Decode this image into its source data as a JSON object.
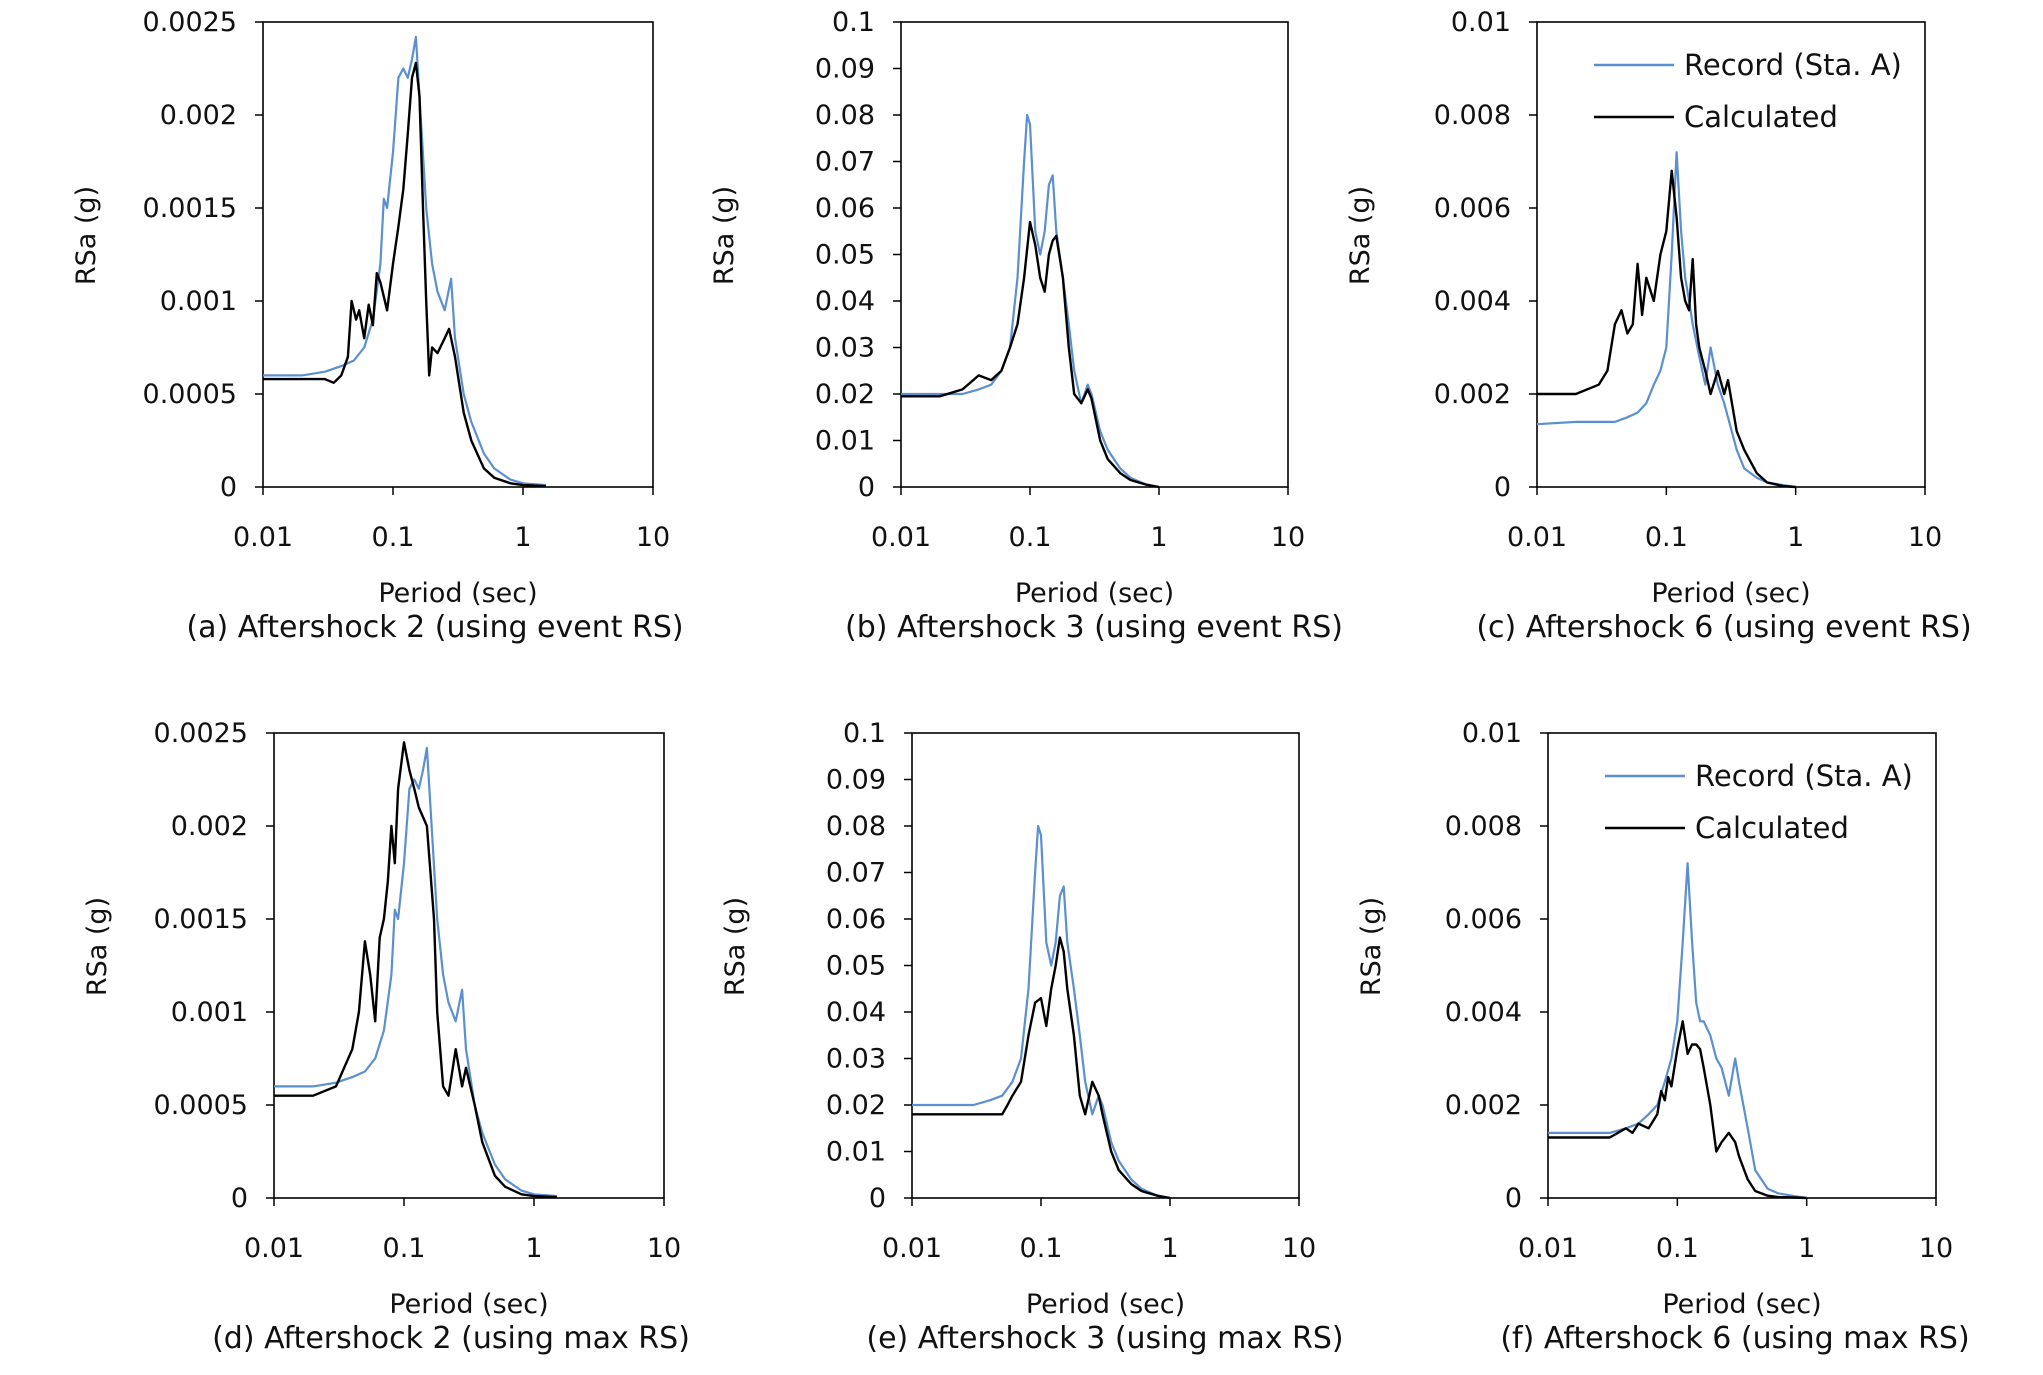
{
  "colors": {
    "record": "#5b8fd0",
    "calculated": "#000000",
    "axis": "#000000"
  },
  "chart_data": [
    {
      "type": "line",
      "caption": "(a) Aftershock 2 (using event RS)",
      "xlabel": "Period (sec)",
      "ylabel": "RSa (g)",
      "xscale": "log",
      "xlim": [
        0.01,
        10
      ],
      "ylim": [
        0,
        0.0025
      ],
      "xticks": [
        "0.01",
        "0.1",
        "1",
        "10"
      ],
      "yticks": [
        "0",
        "0.0005",
        "0.001",
        "0.0015",
        "0.002",
        "0.0025"
      ],
      "grid": false,
      "legend": null,
      "series": [
        {
          "key": "record",
          "x": [
            0.01,
            0.02,
            0.03,
            0.04,
            0.05,
            0.06,
            0.07,
            0.08,
            0.085,
            0.09,
            0.1,
            0.11,
            0.12,
            0.13,
            0.14,
            0.15,
            0.16,
            0.18,
            0.2,
            0.22,
            0.25,
            0.28,
            0.3,
            0.35,
            0.4,
            0.5,
            0.6,
            0.8,
            1.0,
            1.5
          ],
          "y": [
            0.0006,
            0.0006,
            0.00062,
            0.00065,
            0.00068,
            0.00075,
            0.0009,
            0.0012,
            0.00155,
            0.0015,
            0.0018,
            0.0022,
            0.00225,
            0.0022,
            0.0023,
            0.00242,
            0.0021,
            0.0015,
            0.0012,
            0.00105,
            0.00095,
            0.00112,
            0.0008,
            0.0005,
            0.00035,
            0.00018,
            0.0001,
            4e-05,
            2e-05,
            1e-05
          ]
        },
        {
          "key": "calculated",
          "x": [
            0.01,
            0.02,
            0.03,
            0.035,
            0.04,
            0.045,
            0.048,
            0.052,
            0.055,
            0.06,
            0.065,
            0.07,
            0.075,
            0.08,
            0.09,
            0.1,
            0.11,
            0.12,
            0.13,
            0.14,
            0.15,
            0.16,
            0.17,
            0.18,
            0.19,
            0.2,
            0.22,
            0.25,
            0.27,
            0.3,
            0.35,
            0.4,
            0.5,
            0.6,
            0.8,
            1.0,
            1.5
          ],
          "y": [
            0.00058,
            0.00058,
            0.00058,
            0.00056,
            0.0006,
            0.0007,
            0.001,
            0.0009,
            0.00095,
            0.0008,
            0.00098,
            0.00087,
            0.00115,
            0.0011,
            0.00095,
            0.0012,
            0.0014,
            0.0016,
            0.0019,
            0.0022,
            0.00228,
            0.0021,
            0.0015,
            0.001,
            0.0006,
            0.00075,
            0.00072,
            0.0008,
            0.00085,
            0.0007,
            0.0004,
            0.00025,
            0.0001,
            5e-05,
            2e-05,
            1e-05,
            5e-06
          ]
        }
      ]
    },
    {
      "type": "line",
      "caption": "(b) Aftershock 3 (using event RS)",
      "xlabel": "Period (sec)",
      "ylabel": "RSa (g)",
      "xscale": "log",
      "xlim": [
        0.01,
        10
      ],
      "ylim": [
        0,
        0.1
      ],
      "xticks": [
        "0.01",
        "0.1",
        "1",
        "10"
      ],
      "yticks": [
        "0",
        "0.01",
        "0.02",
        "0.03",
        "0.04",
        "0.05",
        "0.06",
        "0.07",
        "0.08",
        "0.09",
        "0.1"
      ],
      "grid": false,
      "legend": null,
      "series": [
        {
          "key": "record",
          "x": [
            0.01,
            0.02,
            0.03,
            0.04,
            0.05,
            0.06,
            0.07,
            0.08,
            0.09,
            0.095,
            0.1,
            0.11,
            0.12,
            0.13,
            0.14,
            0.15,
            0.16,
            0.18,
            0.2,
            0.22,
            0.25,
            0.28,
            0.3,
            0.35,
            0.4,
            0.5,
            0.6,
            0.8,
            1.0
          ],
          "y": [
            0.02,
            0.02,
            0.02,
            0.021,
            0.022,
            0.025,
            0.03,
            0.045,
            0.07,
            0.08,
            0.078,
            0.055,
            0.05,
            0.055,
            0.065,
            0.067,
            0.055,
            0.045,
            0.035,
            0.025,
            0.018,
            0.022,
            0.02,
            0.012,
            0.008,
            0.004,
            0.002,
            0.0005,
            0
          ]
        },
        {
          "key": "calculated",
          "x": [
            0.01,
            0.02,
            0.03,
            0.04,
            0.05,
            0.06,
            0.07,
            0.08,
            0.09,
            0.1,
            0.11,
            0.12,
            0.13,
            0.14,
            0.15,
            0.16,
            0.18,
            0.2,
            0.22,
            0.25,
            0.28,
            0.3,
            0.35,
            0.4,
            0.5,
            0.6,
            0.8,
            1.0
          ],
          "y": [
            0.0195,
            0.0195,
            0.021,
            0.024,
            0.023,
            0.025,
            0.03,
            0.035,
            0.045,
            0.057,
            0.052,
            0.045,
            0.042,
            0.05,
            0.053,
            0.054,
            0.045,
            0.03,
            0.02,
            0.018,
            0.021,
            0.019,
            0.01,
            0.006,
            0.003,
            0.0015,
            0.0005,
            0
          ]
        }
      ]
    },
    {
      "type": "line",
      "caption": "(c) Aftershock 6 (using event RS)",
      "xlabel": "Period (sec)",
      "ylabel": "RSa (g)",
      "xscale": "log",
      "xlim": [
        0.01,
        10
      ],
      "ylim": [
        0,
        0.01
      ],
      "xticks": [
        "0.01",
        "0.1",
        "1",
        "10"
      ],
      "yticks": [
        "0",
        "0.002",
        "0.004",
        "0.006",
        "0.008",
        "0.01"
      ],
      "grid": false,
      "legend": "top-right",
      "legend_labels": {
        "record": "Record (Sta. A)",
        "calculated": "Calculated"
      },
      "series": [
        {
          "key": "record",
          "x": [
            0.01,
            0.02,
            0.03,
            0.04,
            0.05,
            0.06,
            0.07,
            0.08,
            0.09,
            0.1,
            0.11,
            0.12,
            0.13,
            0.14,
            0.15,
            0.16,
            0.18,
            0.2,
            0.22,
            0.25,
            0.28,
            0.3,
            0.35,
            0.4,
            0.5,
            0.6,
            0.8,
            1.0
          ],
          "y": [
            0.00135,
            0.0014,
            0.0014,
            0.0014,
            0.0015,
            0.0016,
            0.0018,
            0.0022,
            0.0025,
            0.003,
            0.005,
            0.0072,
            0.0055,
            0.0045,
            0.004,
            0.0035,
            0.0028,
            0.0022,
            0.003,
            0.0022,
            0.0018,
            0.0015,
            0.0008,
            0.0004,
            0.0002,
            0.0001,
            4e-05,
            0
          ]
        },
        {
          "key": "calculated",
          "x": [
            0.01,
            0.02,
            0.03,
            0.035,
            0.04,
            0.045,
            0.05,
            0.055,
            0.06,
            0.065,
            0.07,
            0.08,
            0.09,
            0.1,
            0.11,
            0.12,
            0.13,
            0.14,
            0.15,
            0.16,
            0.17,
            0.18,
            0.2,
            0.22,
            0.25,
            0.28,
            0.3,
            0.35,
            0.4,
            0.5,
            0.6,
            0.8,
            1.0
          ],
          "y": [
            0.002,
            0.002,
            0.0022,
            0.0025,
            0.0035,
            0.0038,
            0.0033,
            0.0035,
            0.0048,
            0.0037,
            0.0045,
            0.004,
            0.005,
            0.0055,
            0.0068,
            0.0058,
            0.0045,
            0.004,
            0.0038,
            0.0049,
            0.0035,
            0.003,
            0.0025,
            0.002,
            0.0025,
            0.002,
            0.0023,
            0.0012,
            0.0008,
            0.0003,
            0.0001,
            2e-05,
            0
          ]
        }
      ]
    },
    {
      "type": "line",
      "caption": "(d) Aftershock 2 (using max RS)",
      "xlabel": "Period (sec)",
      "ylabel": "RSa (g)",
      "xscale": "log",
      "xlim": [
        0.01,
        10
      ],
      "ylim": [
        0,
        0.0025
      ],
      "xticks": [
        "0.01",
        "0.1",
        "1",
        "10"
      ],
      "yticks": [
        "0",
        "0.0005",
        "0.001",
        "0.0015",
        "0.002",
        "0.0025"
      ],
      "grid": false,
      "legend": null,
      "series": [
        {
          "key": "record",
          "x": [
            0.01,
            0.02,
            0.03,
            0.04,
            0.05,
            0.06,
            0.07,
            0.08,
            0.085,
            0.09,
            0.1,
            0.11,
            0.12,
            0.13,
            0.14,
            0.15,
            0.16,
            0.18,
            0.2,
            0.22,
            0.25,
            0.28,
            0.3,
            0.35,
            0.4,
            0.5,
            0.6,
            0.8,
            1.0,
            1.5
          ],
          "y": [
            0.0006,
            0.0006,
            0.00062,
            0.00065,
            0.00068,
            0.00075,
            0.0009,
            0.0012,
            0.00155,
            0.0015,
            0.0018,
            0.0022,
            0.00225,
            0.0022,
            0.0023,
            0.00242,
            0.0021,
            0.0015,
            0.0012,
            0.00105,
            0.00095,
            0.00112,
            0.0008,
            0.0005,
            0.00035,
            0.00018,
            0.0001,
            4e-05,
            2e-05,
            1e-05
          ]
        },
        {
          "key": "calculated",
          "x": [
            0.01,
            0.02,
            0.03,
            0.04,
            0.045,
            0.05,
            0.055,
            0.06,
            0.065,
            0.07,
            0.075,
            0.08,
            0.085,
            0.09,
            0.1,
            0.11,
            0.12,
            0.13,
            0.15,
            0.17,
            0.18,
            0.2,
            0.22,
            0.25,
            0.28,
            0.3,
            0.35,
            0.4,
            0.5,
            0.6,
            0.8,
            1.0,
            1.5
          ],
          "y": [
            0.00055,
            0.00055,
            0.0006,
            0.0008,
            0.001,
            0.00138,
            0.0012,
            0.00095,
            0.0014,
            0.0015,
            0.0017,
            0.002,
            0.0018,
            0.0022,
            0.00245,
            0.0023,
            0.0022,
            0.0021,
            0.002,
            0.0015,
            0.001,
            0.0006,
            0.00055,
            0.0008,
            0.0006,
            0.0007,
            0.0005,
            0.0003,
            0.00012,
            6e-05,
            2e-05,
            1e-05,
            5e-06
          ]
        }
      ]
    },
    {
      "type": "line",
      "caption": "(e) Aftershock 3 (using max RS)",
      "xlabel": "Period (sec)",
      "ylabel": "RSa (g)",
      "xscale": "log",
      "xlim": [
        0.01,
        10
      ],
      "ylim": [
        0,
        0.1
      ],
      "xticks": [
        "0.01",
        "0.1",
        "1",
        "10"
      ],
      "yticks": [
        "0",
        "0.01",
        "0.02",
        "0.03",
        "0.04",
        "0.05",
        "0.06",
        "0.07",
        "0.08",
        "0.09",
        "0.1"
      ],
      "grid": false,
      "legend": null,
      "series": [
        {
          "key": "record",
          "x": [
            0.01,
            0.02,
            0.03,
            0.04,
            0.05,
            0.06,
            0.07,
            0.08,
            0.09,
            0.095,
            0.1,
            0.11,
            0.12,
            0.13,
            0.14,
            0.15,
            0.16,
            0.18,
            0.2,
            0.22,
            0.25,
            0.28,
            0.3,
            0.35,
            0.4,
            0.5,
            0.6,
            0.8,
            1.0
          ],
          "y": [
            0.02,
            0.02,
            0.02,
            0.021,
            0.022,
            0.025,
            0.03,
            0.045,
            0.07,
            0.08,
            0.078,
            0.055,
            0.05,
            0.055,
            0.065,
            0.067,
            0.055,
            0.045,
            0.035,
            0.025,
            0.018,
            0.022,
            0.02,
            0.012,
            0.008,
            0.004,
            0.002,
            0.0005,
            0
          ]
        },
        {
          "key": "calculated",
          "x": [
            0.01,
            0.02,
            0.03,
            0.04,
            0.05,
            0.055,
            0.06,
            0.07,
            0.08,
            0.09,
            0.1,
            0.11,
            0.12,
            0.13,
            0.14,
            0.15,
            0.16,
            0.18,
            0.2,
            0.22,
            0.25,
            0.28,
            0.3,
            0.35,
            0.4,
            0.5,
            0.6,
            0.8,
            1.0
          ],
          "y": [
            0.018,
            0.018,
            0.018,
            0.018,
            0.018,
            0.02,
            0.022,
            0.025,
            0.035,
            0.042,
            0.043,
            0.037,
            0.045,
            0.05,
            0.056,
            0.053,
            0.045,
            0.035,
            0.022,
            0.018,
            0.025,
            0.022,
            0.018,
            0.01,
            0.006,
            0.003,
            0.0015,
            0.0005,
            0
          ]
        }
      ]
    },
    {
      "type": "line",
      "caption": "(f) Aftershock 6 (using max RS)",
      "xlabel": "Period (sec)",
      "ylabel": "RSa (g)",
      "xscale": "log",
      "xlim": [
        0.01,
        10
      ],
      "ylim": [
        0,
        0.01
      ],
      "xticks": [
        "0.01",
        "0.1",
        "1",
        "10"
      ],
      "yticks": [
        "0",
        "0.002",
        "0.004",
        "0.006",
        "0.008",
        "0.01"
      ],
      "grid": false,
      "legend": "top-right",
      "legend_labels": {
        "record": "Record (Sta. A)",
        "calculated": "Calculated"
      },
      "series": [
        {
          "key": "record",
          "x": [
            0.01,
            0.02,
            0.03,
            0.04,
            0.05,
            0.06,
            0.07,
            0.08,
            0.09,
            0.1,
            0.11,
            0.12,
            0.13,
            0.14,
            0.15,
            0.16,
            0.18,
            0.2,
            0.22,
            0.25,
            0.28,
            0.3,
            0.35,
            0.4,
            0.5,
            0.6,
            0.8,
            1.0
          ],
          "y": [
            0.0014,
            0.0014,
            0.0014,
            0.0015,
            0.0016,
            0.0018,
            0.002,
            0.0025,
            0.003,
            0.0038,
            0.0055,
            0.0072,
            0.0055,
            0.0042,
            0.0038,
            0.0038,
            0.0035,
            0.003,
            0.0028,
            0.0022,
            0.003,
            0.0025,
            0.0015,
            0.0006,
            0.0002,
            0.0001,
            4e-05,
            0
          ]
        },
        {
          "key": "calculated",
          "x": [
            0.01,
            0.02,
            0.03,
            0.04,
            0.045,
            0.05,
            0.06,
            0.07,
            0.075,
            0.08,
            0.085,
            0.09,
            0.1,
            0.11,
            0.12,
            0.13,
            0.14,
            0.15,
            0.16,
            0.18,
            0.2,
            0.22,
            0.25,
            0.28,
            0.3,
            0.35,
            0.4,
            0.5,
            0.6,
            0.8,
            1.0
          ],
          "y": [
            0.0013,
            0.0013,
            0.0013,
            0.0015,
            0.0014,
            0.0016,
            0.0015,
            0.0018,
            0.0023,
            0.0021,
            0.0026,
            0.0024,
            0.0032,
            0.0038,
            0.0031,
            0.0033,
            0.0033,
            0.0032,
            0.0028,
            0.002,
            0.001,
            0.0012,
            0.0014,
            0.0012,
            0.0009,
            0.0004,
            0.00015,
            5e-05,
            2e-05,
            1e-05,
            0
          ]
        }
      ]
    }
  ]
}
